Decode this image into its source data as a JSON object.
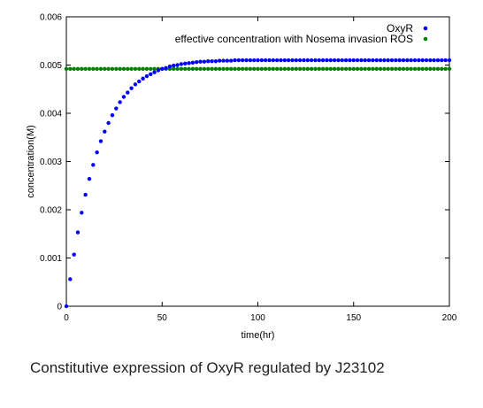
{
  "chart_data": {
    "type": "scatter",
    "xlim": [
      0,
      200
    ],
    "ylim": [
      0,
      0.006
    ],
    "xlabel": "time(hr)",
    "ylabel": "concentration(M)",
    "xticks": [
      0,
      50,
      100,
      150,
      200
    ],
    "xtick_labels": [
      "0",
      "50",
      "100",
      "150",
      "200"
    ],
    "yticks": [
      0,
      0.001,
      0.002,
      0.003,
      0.004,
      0.005,
      0.006
    ],
    "ytick_labels": [
      "0",
      "0.001",
      "0.002",
      "0.003",
      "0.004",
      "0.005",
      "0.006"
    ],
    "grid": false,
    "legend_position": "top-right",
    "series": [
      {
        "name": "OxyR",
        "color": "#0000ff",
        "x": [
          0,
          2,
          4,
          6,
          8,
          10,
          12,
          14,
          16,
          18,
          20,
          22,
          24,
          26,
          28,
          30,
          32,
          34,
          36,
          38,
          40,
          42,
          44,
          46,
          48,
          50,
          52,
          54,
          56,
          58,
          60,
          62,
          64,
          66,
          68,
          70,
          72,
          74,
          76,
          78,
          80,
          82,
          84,
          86,
          88,
          90,
          92,
          94,
          96,
          98,
          100,
          102,
          104,
          106,
          108,
          110,
          112,
          114,
          116,
          118,
          120,
          122,
          124,
          126,
          128,
          130,
          132,
          134,
          136,
          138,
          140,
          142,
          144,
          146,
          148,
          150,
          152,
          154,
          156,
          158,
          160,
          162,
          164,
          166,
          168,
          170,
          172,
          174,
          176,
          178,
          180,
          182,
          184,
          186,
          188,
          190,
          192,
          194,
          196,
          198,
          200
        ],
        "y": [
          0,
          0.00056,
          0.00107,
          0.00153,
          0.00194,
          0.00231,
          0.00264,
          0.00293,
          0.00319,
          0.00342,
          0.00362,
          0.0038,
          0.00396,
          0.0041,
          0.00423,
          0.00434,
          0.00443,
          0.00452,
          0.0046,
          0.00466,
          0.00472,
          0.00477,
          0.00481,
          0.00485,
          0.00489,
          0.00492,
          0.00494,
          0.00497,
          0.00499,
          0.005,
          0.00502,
          0.00503,
          0.00504,
          0.00505,
          0.00506,
          0.00507,
          0.00507,
          0.00508,
          0.00508,
          0.00508,
          0.00509,
          0.00509,
          0.00509,
          0.00509,
          0.0051,
          0.0051,
          0.0051,
          0.0051,
          0.0051,
          0.0051,
          0.0051,
          0.0051,
          0.0051,
          0.0051,
          0.0051,
          0.0051,
          0.0051,
          0.0051,
          0.0051,
          0.0051,
          0.0051,
          0.0051,
          0.0051,
          0.0051,
          0.0051,
          0.0051,
          0.0051,
          0.0051,
          0.0051,
          0.0051,
          0.0051,
          0.0051,
          0.0051,
          0.0051,
          0.0051,
          0.0051,
          0.0051,
          0.0051,
          0.0051,
          0.0051,
          0.0051,
          0.0051,
          0.0051,
          0.0051,
          0.0051,
          0.0051,
          0.0051,
          0.0051,
          0.0051,
          0.0051,
          0.0051,
          0.0051,
          0.0051,
          0.0051,
          0.0051,
          0.0051,
          0.0051,
          0.0051,
          0.0051,
          0.0051,
          0.0051
        ]
      },
      {
        "name": "effective concentration with Nosema invasion ROS",
        "color": "#008000",
        "x": [
          0,
          2,
          4,
          6,
          8,
          10,
          12,
          14,
          16,
          18,
          20,
          22,
          24,
          26,
          28,
          30,
          32,
          34,
          36,
          38,
          40,
          42,
          44,
          46,
          48,
          50,
          52,
          54,
          56,
          58,
          60,
          62,
          64,
          66,
          68,
          70,
          72,
          74,
          76,
          78,
          80,
          82,
          84,
          86,
          88,
          90,
          92,
          94,
          96,
          98,
          100,
          102,
          104,
          106,
          108,
          110,
          112,
          114,
          116,
          118,
          120,
          122,
          124,
          126,
          128,
          130,
          132,
          134,
          136,
          138,
          140,
          142,
          144,
          146,
          148,
          150,
          152,
          154,
          156,
          158,
          160,
          162,
          164,
          166,
          168,
          170,
          172,
          174,
          176,
          178,
          180,
          182,
          184,
          186,
          188,
          190,
          192,
          194,
          196,
          198,
          200
        ],
        "y": [
          0.00492,
          0.00492,
          0.00492,
          0.00492,
          0.00492,
          0.00492,
          0.00492,
          0.00492,
          0.00492,
          0.00492,
          0.00492,
          0.00492,
          0.00492,
          0.00492,
          0.00492,
          0.00492,
          0.00492,
          0.00492,
          0.00492,
          0.00492,
          0.00492,
          0.00492,
          0.00492,
          0.00492,
          0.00492,
          0.00492,
          0.00492,
          0.00492,
          0.00492,
          0.00492,
          0.00492,
          0.00492,
          0.00492,
          0.00492,
          0.00492,
          0.00492,
          0.00492,
          0.00492,
          0.00492,
          0.00492,
          0.00492,
          0.00492,
          0.00492,
          0.00492,
          0.00492,
          0.00492,
          0.00492,
          0.00492,
          0.00492,
          0.00492,
          0.00492,
          0.00492,
          0.00492,
          0.00492,
          0.00492,
          0.00492,
          0.00492,
          0.00492,
          0.00492,
          0.00492,
          0.00492,
          0.00492,
          0.00492,
          0.00492,
          0.00492,
          0.00492,
          0.00492,
          0.00492,
          0.00492,
          0.00492,
          0.00492,
          0.00492,
          0.00492,
          0.00492,
          0.00492,
          0.00492,
          0.00492,
          0.00492,
          0.00492,
          0.00492,
          0.00492,
          0.00492,
          0.00492,
          0.00492,
          0.00492,
          0.00492,
          0.00492,
          0.00492,
          0.00492,
          0.00492,
          0.00492,
          0.00492,
          0.00492,
          0.00492,
          0.00492,
          0.00492,
          0.00492,
          0.00492,
          0.00492,
          0.00492,
          0.00492
        ]
      }
    ]
  },
  "caption": "Constitutive expression of OxyR regulated by J23102"
}
